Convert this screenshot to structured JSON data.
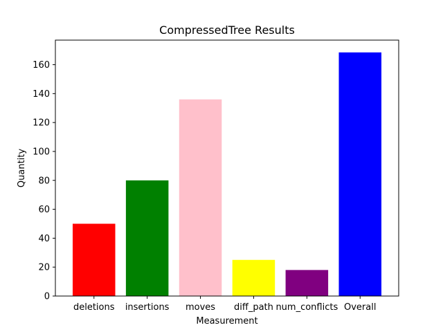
{
  "chart_data": {
    "type": "bar",
    "title": "CompressedTree Results",
    "xlabel": "Measurement",
    "ylabel": "Quantity",
    "categories": [
      "deletions",
      "insertions",
      "moves",
      "diff_path",
      "num_conflicts",
      "Overall"
    ],
    "values": [
      50,
      80,
      136,
      25,
      18,
      168.5
    ],
    "colors": [
      "#ff0000",
      "#008000",
      "#ffc0cb",
      "#ffff00",
      "#800080",
      "#0000ff"
    ],
    "ylim": [
      0,
      177
    ],
    "yticks": [
      0,
      20,
      40,
      60,
      80,
      100,
      120,
      140,
      160
    ],
    "grid": false,
    "legend": "none"
  }
}
